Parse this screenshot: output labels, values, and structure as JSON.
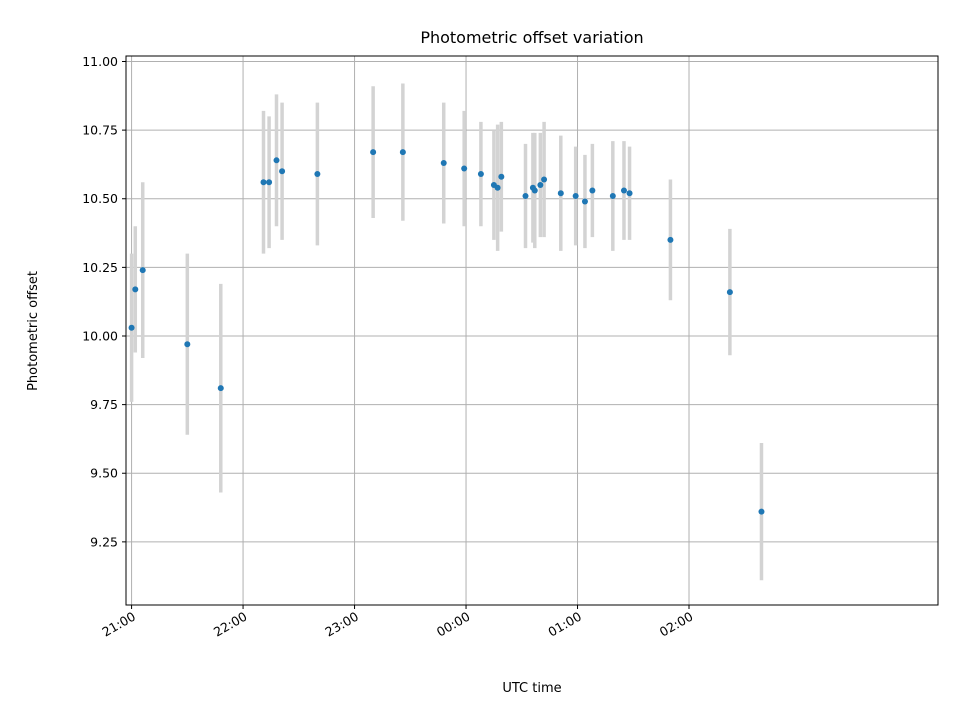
{
  "chart_data": {
    "type": "scatter",
    "title": "Photometric offset variation",
    "xlabel": "UTC time",
    "ylabel": "Photometric offset",
    "grid": true,
    "legend": "none",
    "x_range_minutes_utc": [
      1257,
      1694
    ],
    "x_unit": "minutes after 00:00 UTC on the first night (values above 1440 are after midnight)",
    "ylim": [
      9.02,
      11.02
    ],
    "x_ticks": [
      "21:00",
      "22:00",
      "23:00",
      "00:00",
      "01:00",
      "02:00"
    ],
    "y_ticks": [
      "9.25",
      "9.50",
      "9.75",
      "10.00",
      "10.25",
      "10.50",
      "10.75",
      "11.00"
    ],
    "series": [
      {
        "marker_color": "#1f77b4",
        "errorbar_color": "#d3d3d3",
        "points": [
          {
            "t": "21:00",
            "y": 10.03,
            "err": 0.27
          },
          {
            "t": "21:02",
            "y": 10.17,
            "err": 0.23
          },
          {
            "t": "21:06",
            "y": 10.24,
            "err": 0.32
          },
          {
            "t": "21:30",
            "y": 9.97,
            "err": 0.33
          },
          {
            "t": "21:48",
            "y": 9.81,
            "err": 0.38
          },
          {
            "t": "22:11",
            "y": 10.56,
            "err": 0.26
          },
          {
            "t": "22:14",
            "y": 10.56,
            "err": 0.24
          },
          {
            "t": "22:18",
            "y": 10.64,
            "err": 0.24
          },
          {
            "t": "22:21",
            "y": 10.6,
            "err": 0.25
          },
          {
            "t": "22:40",
            "y": 10.59,
            "err": 0.26
          },
          {
            "t": "23:10",
            "y": 10.67,
            "err": 0.24
          },
          {
            "t": "23:26",
            "y": 10.67,
            "err": 0.25
          },
          {
            "t": "23:48",
            "y": 10.63,
            "err": 0.22
          },
          {
            "t": "23:59",
            "y": 10.61,
            "err": 0.21
          },
          {
            "t": "00:08",
            "y": 10.59,
            "err": 0.19
          },
          {
            "t": "00:15",
            "y": 10.55,
            "err": 0.2
          },
          {
            "t": "00:17",
            "y": 10.54,
            "err": 0.23
          },
          {
            "t": "00:19",
            "y": 10.58,
            "err": 0.2
          },
          {
            "t": "00:32",
            "y": 10.51,
            "err": 0.19
          },
          {
            "t": "00:36",
            "y": 10.54,
            "err": 0.2
          },
          {
            "t": "00:37",
            "y": 10.53,
            "err": 0.21
          },
          {
            "t": "00:40",
            "y": 10.55,
            "err": 0.19
          },
          {
            "t": "00:42",
            "y": 10.57,
            "err": 0.21
          },
          {
            "t": "00:51",
            "y": 10.52,
            "err": 0.21
          },
          {
            "t": "00:59",
            "y": 10.51,
            "err": 0.18
          },
          {
            "t": "01:04",
            "y": 10.49,
            "err": 0.17
          },
          {
            "t": "01:08",
            "y": 10.53,
            "err": 0.17
          },
          {
            "t": "01:19",
            "y": 10.51,
            "err": 0.2
          },
          {
            "t": "01:25",
            "y": 10.53,
            "err": 0.18
          },
          {
            "t": "01:28",
            "y": 10.52,
            "err": 0.17
          },
          {
            "t": "01:50",
            "y": 10.35,
            "err": 0.22
          },
          {
            "t": "02:22",
            "y": 10.16,
            "err": 0.23
          },
          {
            "t": "02:39",
            "y": 9.36,
            "err": 0.25
          }
        ]
      }
    ]
  }
}
